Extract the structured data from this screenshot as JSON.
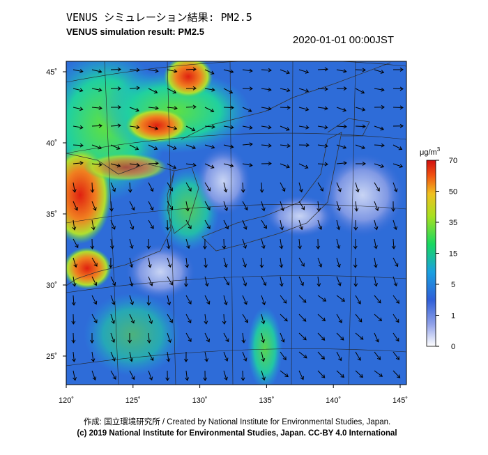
{
  "header": {
    "title": "VENUS シミュレーション結果: PM2.5",
    "subtitle": "VENUS simulation result: PM2.5",
    "timestamp": "2020-01-01 00:00JST"
  },
  "map": {
    "lat_labels": [
      "45˚",
      "40˚",
      "35˚",
      "30˚",
      "25˚"
    ],
    "lon_labels": [
      "120˚",
      "125˚",
      "130˚",
      "135˚",
      "140˚",
      "145˚"
    ]
  },
  "colorbar": {
    "unit": {
      "base": "μg/m",
      "sup": "3"
    },
    "labels": [
      "70",
      "50",
      "35",
      "15",
      "5",
      "1",
      "0"
    ]
  },
  "footer": {
    "credit": "作成: 国立環境研究所 / Created by National Institute for Environmental Studies, Japan.",
    "copyright": "(c) 2019 National Institute for Environmental Studies, Japan. CC-BY 4.0 International"
  }
}
